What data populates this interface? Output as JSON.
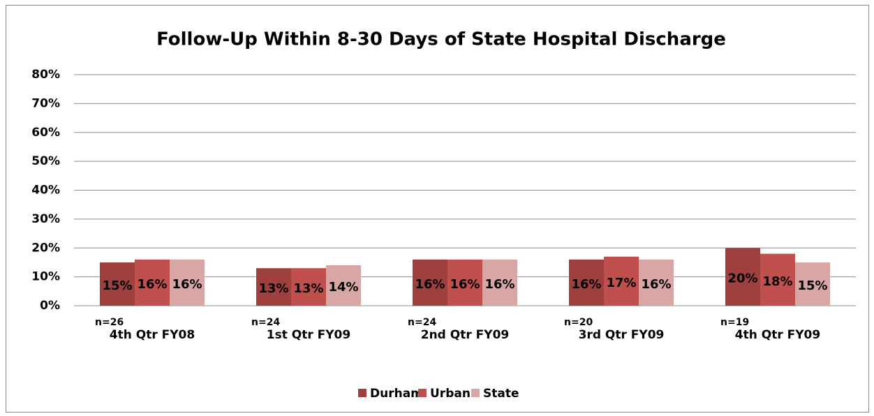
{
  "chart_data": {
    "type": "bar",
    "title": "Follow-Up Within 8-30 Days of State Hospital Discharge",
    "categories": [
      "4th Qtr FY08",
      "1st Qtr FY09",
      "2nd Qtr FY09",
      "3rd Qtr FY09",
      "4th Qtr FY09"
    ],
    "annotations": [
      "n=26",
      "n=24",
      "n=24",
      "n=20",
      "n=19"
    ],
    "series": [
      {
        "name": "Durham",
        "color": "#9e403e",
        "values": [
          15,
          13,
          16,
          16,
          20
        ],
        "value_labels": [
          "15%",
          "13%",
          "16%",
          "16%",
          "20%"
        ]
      },
      {
        "name": "Urban",
        "color": "#c0504d",
        "values": [
          16,
          13,
          16,
          17,
          18
        ],
        "value_labels": [
          "16%",
          "13%",
          "16%",
          "17%",
          "18%"
        ]
      },
      {
        "name": "State",
        "color": "#d9a6a6",
        "values": [
          16,
          14,
          16,
          16,
          15
        ],
        "value_labels": [
          "16%",
          "14%",
          "16%",
          "16%",
          "15%"
        ]
      }
    ],
    "ylim": [
      0,
      80
    ],
    "yticks": [
      {
        "value": 0,
        "label": "0%"
      },
      {
        "value": 10,
        "label": "10%"
      },
      {
        "value": 20,
        "label": "20%"
      },
      {
        "value": 30,
        "label": "30%"
      },
      {
        "value": 40,
        "label": "40%"
      },
      {
        "value": 50,
        "label": "50%"
      },
      {
        "value": 60,
        "label": "60%"
      },
      {
        "value": 70,
        "label": "70%"
      },
      {
        "value": 80,
        "label": "80%"
      }
    ],
    "grid": true,
    "legend": "bottom"
  }
}
